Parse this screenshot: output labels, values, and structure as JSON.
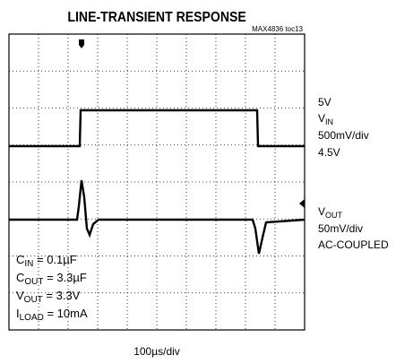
{
  "header": {
    "title": "LINE-TRANSIENT RESPONSE",
    "tag": "MAX4836 toc13"
  },
  "scope": {
    "time_scale": "100µs/div",
    "ch1": {
      "top": "5V",
      "name": "V",
      "name_sub": "IN",
      "scale": "500mV/div",
      "bottom": "4.5V"
    },
    "ch2": {
      "name": "V",
      "name_sub": "OUT",
      "scale": "50mV/div",
      "coupling": "AC-COUPLED"
    },
    "conditions": [
      {
        "sym": "C",
        "sub": "IN",
        "rest": " = 0.1µF"
      },
      {
        "sym": "C",
        "sub": "OUT",
        "rest": " = 3.3µF"
      },
      {
        "sym": "V",
        "sub": "OUT",
        "rest": " = 3.3V"
      },
      {
        "sym": "I",
        "sub": "LOAD",
        "rest": " = 10mA"
      }
    ]
  }
}
